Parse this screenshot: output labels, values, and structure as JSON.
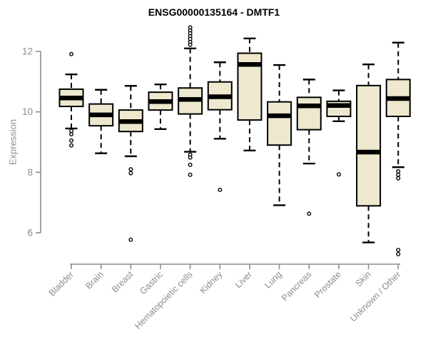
{
  "chart_data": {
    "type": "boxplot",
    "title": "ENSG00000135164 - DMTF1",
    "ylabel": "Expression",
    "xlabel": "",
    "yticks": [
      6,
      8,
      10,
      12
    ],
    "ylim": [
      5.1,
      12.95
    ],
    "grid": false,
    "legend": "none",
    "categories": [
      "Bladder",
      "Brain",
      "Breast",
      "Gastric",
      "Hematopoietic cells",
      "Kidney",
      "Liver",
      "Lung",
      "Pancreas",
      "Prostate",
      "Skin",
      "Unknown / Other"
    ],
    "boxes": [
      {
        "category": "Bladder",
        "whisker_low": 9.45,
        "q1": 10.18,
        "median": 10.46,
        "q3": 10.75,
        "whisker_high": 11.24,
        "outliers": [
          11.91,
          9.37,
          9.26,
          9.05,
          8.89
        ]
      },
      {
        "category": "Brain",
        "whisker_low": 8.63,
        "q1": 9.54,
        "median": 9.9,
        "q3": 10.26,
        "whisker_high": 10.73,
        "outliers": []
      },
      {
        "category": "Breast",
        "whisker_low": 8.53,
        "q1": 9.35,
        "median": 9.68,
        "q3": 10.06,
        "whisker_high": 10.86,
        "outliers": [
          8.1,
          7.97,
          5.77
        ]
      },
      {
        "category": "Gastric",
        "whisker_low": 9.43,
        "q1": 10.06,
        "median": 10.34,
        "q3": 10.65,
        "whisker_high": 10.91,
        "outliers": []
      },
      {
        "category": "Hematopoietic cells",
        "whisker_low": 8.68,
        "q1": 9.93,
        "median": 10.41,
        "q3": 10.79,
        "whisker_high": 12.1,
        "outliers": [
          12.79,
          12.69,
          12.6,
          12.5,
          12.41,
          12.31,
          12.22,
          8.58,
          8.49,
          8.25,
          7.92
        ]
      },
      {
        "category": "Kidney",
        "whisker_low": 9.11,
        "q1": 10.07,
        "median": 10.5,
        "q3": 10.99,
        "whisker_high": 11.64,
        "outliers": [
          7.42
        ]
      },
      {
        "category": "Liver",
        "whisker_low": 8.72,
        "q1": 9.73,
        "median": 11.57,
        "q3": 11.94,
        "whisker_high": 12.43,
        "outliers": []
      },
      {
        "category": "Lung",
        "whisker_low": 6.91,
        "q1": 8.9,
        "median": 9.87,
        "q3": 10.33,
        "whisker_high": 11.55,
        "outliers": []
      },
      {
        "category": "Pancreas",
        "whisker_low": 8.29,
        "q1": 9.41,
        "median": 10.2,
        "q3": 10.48,
        "whisker_high": 11.07,
        "outliers": [
          6.63
        ]
      },
      {
        "category": "Prostate",
        "whisker_low": 9.69,
        "q1": 9.85,
        "median": 10.21,
        "q3": 10.35,
        "whisker_high": 10.71,
        "outliers": [
          7.93
        ]
      },
      {
        "category": "Skin",
        "whisker_low": 5.68,
        "q1": 6.89,
        "median": 8.67,
        "q3": 10.87,
        "whisker_high": 11.57,
        "outliers": []
      },
      {
        "category": "Unknown / Other",
        "whisker_low": 8.17,
        "q1": 9.85,
        "median": 10.44,
        "q3": 11.07,
        "whisker_high": 12.29,
        "outliers": [
          8.03,
          7.92,
          7.8,
          5.43,
          5.29
        ]
      }
    ],
    "colors": {
      "box_fill": "#ede8ce",
      "box_stroke": "#000000",
      "median": "#000000",
      "axis": "#8c8c8c",
      "title": "#000000",
      "background": "#ffffff"
    }
  }
}
